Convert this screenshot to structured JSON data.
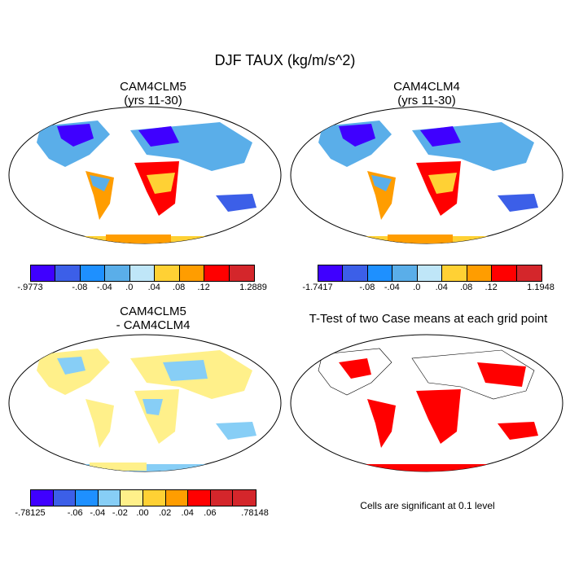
{
  "title": "DJF TAUX (kg/m/s^2)",
  "panels": [
    {
      "id": "tl",
      "title_line1": "CAM4CLM5",
      "title_line2": "(yrs 11-30)"
    },
    {
      "id": "tr",
      "title_line1": "CAM4CLM4",
      "title_line2": "(yrs 11-30)"
    },
    {
      "id": "bl",
      "title_line1": "CAM4CLM5",
      "title_line2": "- CAM4CLM4"
    },
    {
      "id": "br",
      "title_line1": "T-Test of two Case means at each grid point",
      "title_line2": ""
    }
  ],
  "colorbars": {
    "top_left": {
      "colors": [
        "#3f00ff",
        "#3c5fe8",
        "#1e90ff",
        "#5aaee9",
        "#bfe6f8",
        "#ffd134",
        "#ff9d00",
        "#ff0000",
        "#d4262b"
      ],
      "labels": [
        "-.9773",
        "-.08",
        "-.04",
        ".0",
        ".04",
        ".08",
        ".12",
        "1.2889"
      ]
    },
    "top_right": {
      "colors": [
        "#3f00ff",
        "#3c5fe8",
        "#1e90ff",
        "#5aaee9",
        "#bfe6f8",
        "#ffd134",
        "#ff9d00",
        "#ff0000",
        "#d4262b"
      ],
      "labels": [
        "-1.7417",
        "-.08",
        "-.04",
        ".0",
        ".04",
        ".08",
        ".12",
        "1.1948"
      ]
    },
    "bottom_left": {
      "colors": [
        "#3f00ff",
        "#3c5fe8",
        "#1e90ff",
        "#87cef6",
        "#fff08a",
        "#ffd134",
        "#ff9d00",
        "#ff0000",
        "#d4262b",
        "#d4262b"
      ],
      "labels": [
        "-.78125",
        "-.06",
        "-.04",
        "-.02",
        ".00",
        ".02",
        ".04",
        ".06",
        ".78148"
      ]
    }
  },
  "note": "Cells are significant at 0.1 level"
}
